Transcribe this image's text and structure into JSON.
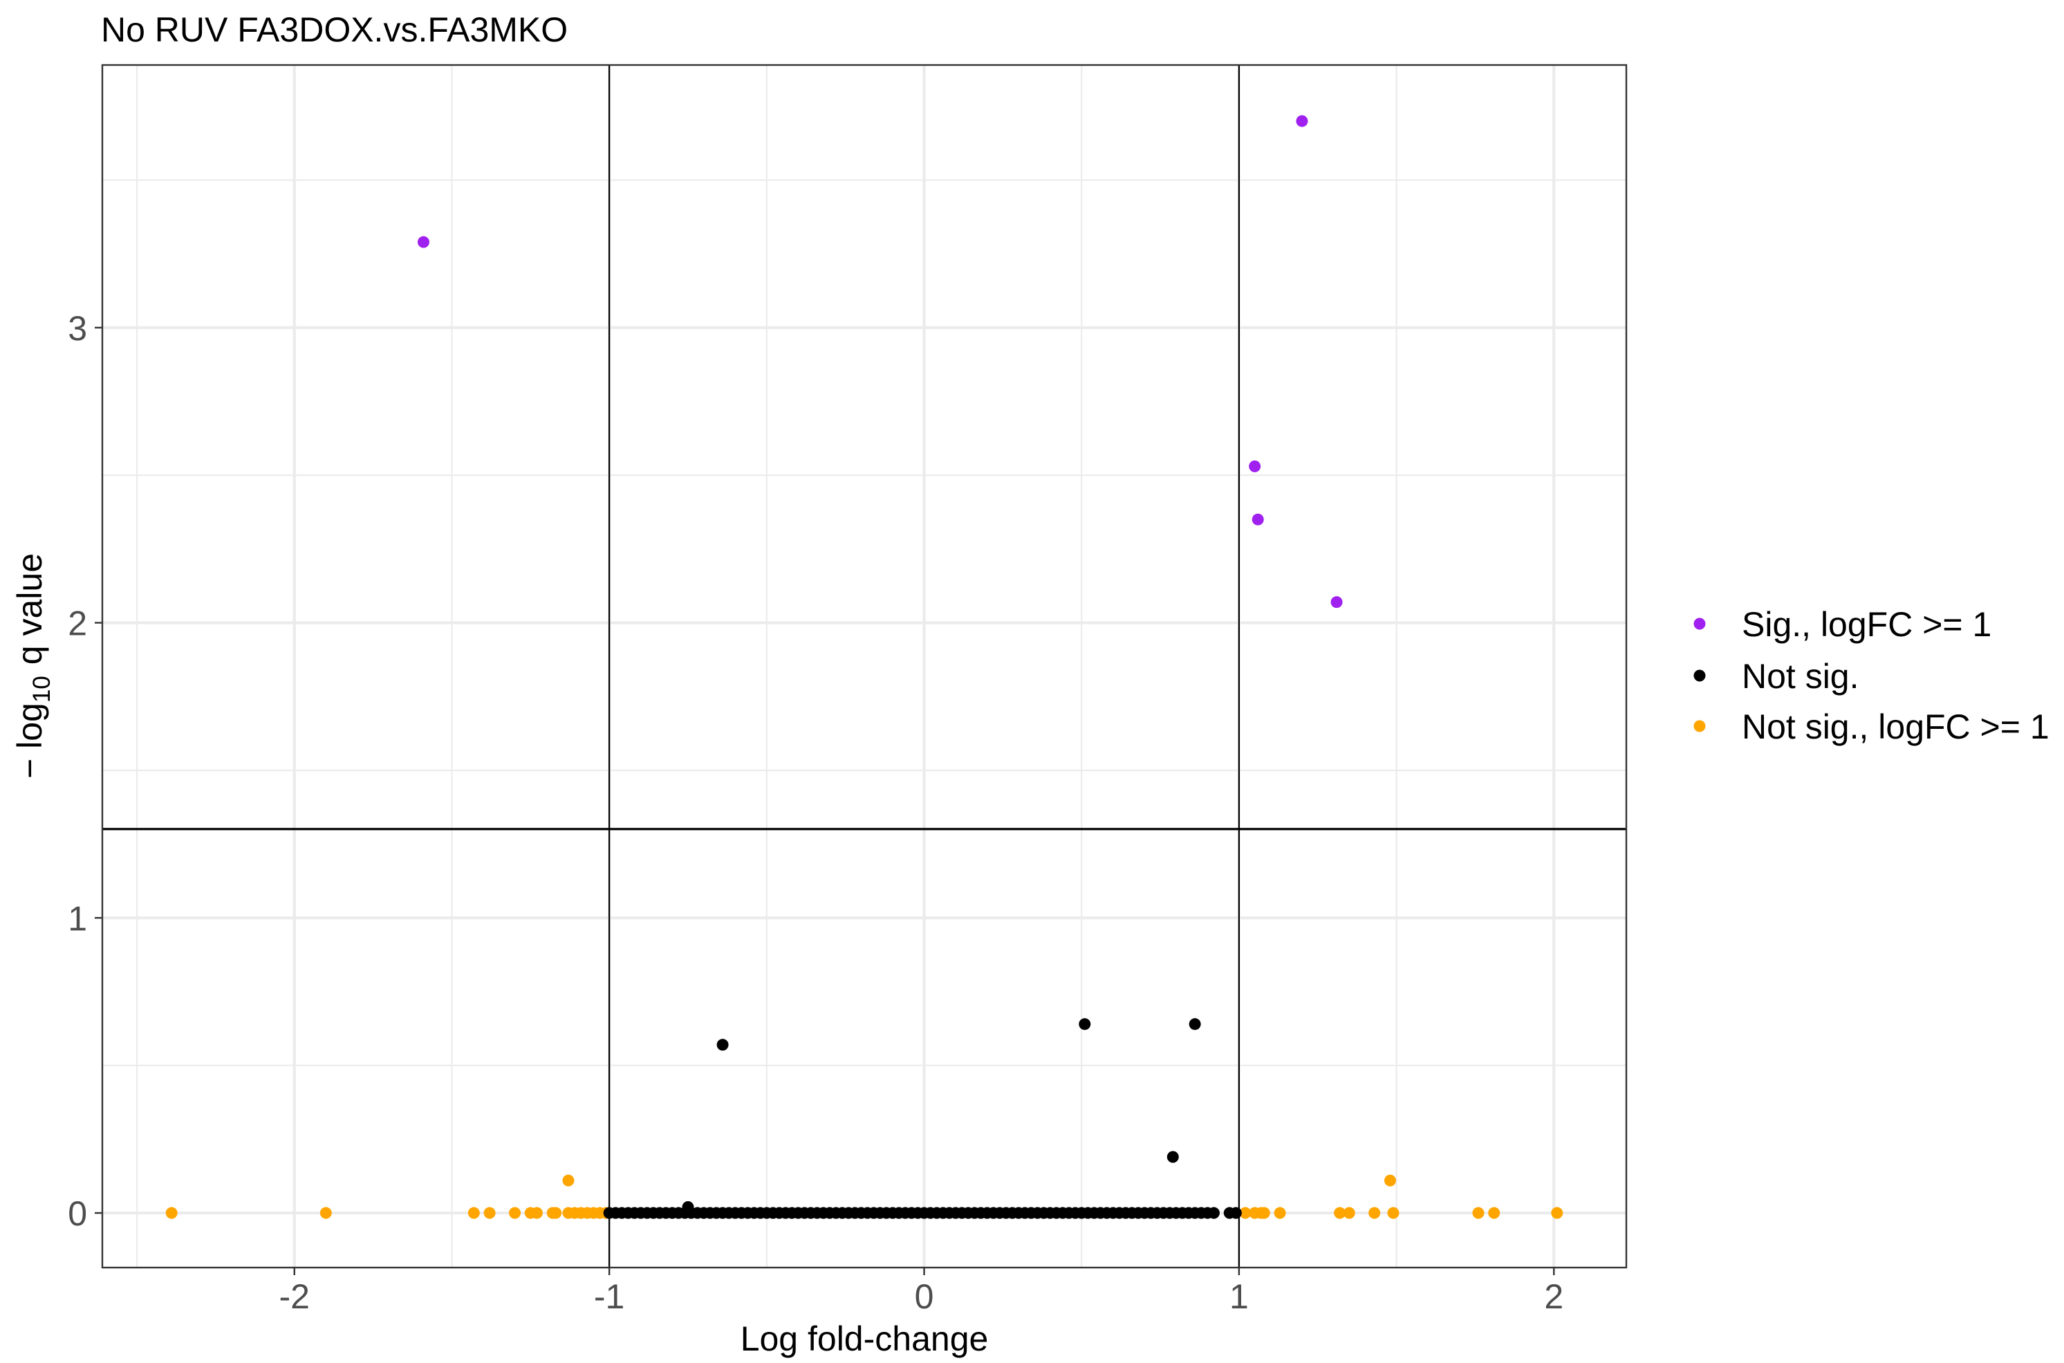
{
  "chart_data": {
    "type": "scatter",
    "title": "No RUV FA3DOX.vs.FA3MKO",
    "xlabel": "Log fold-change",
    "ylabel": {
      "prefix": "− log",
      "subscript": "10",
      "suffix": "q value"
    },
    "xlim": [
      -2.61,
      2.23
    ],
    "ylim": [
      -0.185,
      3.89
    ],
    "x_ticks": [
      -2,
      -1,
      0,
      1,
      2
    ],
    "x_tick_labels": [
      "-2",
      "-1",
      "0",
      "1",
      "2"
    ],
    "y_ticks": [
      0,
      1,
      2,
      3
    ],
    "y_tick_labels": [
      "0",
      "1",
      "2",
      "3"
    ],
    "grid": true,
    "legend_position": "right",
    "reference_lines": {
      "vertical_x": [
        -1,
        1
      ],
      "horizontal_y": [
        1.301
      ]
    },
    "series": [
      {
        "name": "Sig., logFC >= 1",
        "color": "#A020F0",
        "points": [
          [
            -1.59,
            3.29
          ],
          [
            1.2,
            3.7
          ],
          [
            1.05,
            2.53
          ],
          [
            1.06,
            2.35
          ],
          [
            1.31,
            2.07
          ]
        ]
      },
      {
        "name": "Not sig.",
        "color": "#000000",
        "points": [
          [
            -1.0,
            0
          ],
          [
            -0.98,
            0
          ],
          [
            -0.96,
            0
          ],
          [
            -0.94,
            0
          ],
          [
            -0.92,
            0
          ],
          [
            -0.9,
            0
          ],
          [
            -0.88,
            0
          ],
          [
            -0.86,
            0
          ],
          [
            -0.84,
            0
          ],
          [
            -0.82,
            0
          ],
          [
            -0.8,
            0
          ],
          [
            -0.78,
            0
          ],
          [
            -0.76,
            0
          ],
          [
            -0.74,
            0
          ],
          [
            -0.72,
            0
          ],
          [
            -0.7,
            0
          ],
          [
            -0.68,
            0
          ],
          [
            -0.66,
            0
          ],
          [
            -0.64,
            0
          ],
          [
            -0.62,
            0
          ],
          [
            -0.6,
            0
          ],
          [
            -0.58,
            0
          ],
          [
            -0.56,
            0
          ],
          [
            -0.54,
            0
          ],
          [
            -0.52,
            0
          ],
          [
            -0.5,
            0
          ],
          [
            -0.48,
            0
          ],
          [
            -0.46,
            0
          ],
          [
            -0.44,
            0
          ],
          [
            -0.42,
            0
          ],
          [
            -0.4,
            0
          ],
          [
            -0.38,
            0
          ],
          [
            -0.36,
            0
          ],
          [
            -0.34,
            0
          ],
          [
            -0.32,
            0
          ],
          [
            -0.3,
            0
          ],
          [
            -0.28,
            0
          ],
          [
            -0.26,
            0
          ],
          [
            -0.24,
            0
          ],
          [
            -0.22,
            0
          ],
          [
            -0.2,
            0
          ],
          [
            -0.18,
            0
          ],
          [
            -0.16,
            0
          ],
          [
            -0.14,
            0
          ],
          [
            -0.12,
            0
          ],
          [
            -0.1,
            0
          ],
          [
            -0.08,
            0
          ],
          [
            -0.06,
            0
          ],
          [
            -0.04,
            0
          ],
          [
            -0.02,
            0
          ],
          [
            0.0,
            0
          ],
          [
            0.02,
            0
          ],
          [
            0.04,
            0
          ],
          [
            0.06,
            0
          ],
          [
            0.08,
            0
          ],
          [
            0.1,
            0
          ],
          [
            0.12,
            0
          ],
          [
            0.14,
            0
          ],
          [
            0.16,
            0
          ],
          [
            0.18,
            0
          ],
          [
            0.2,
            0
          ],
          [
            0.22,
            0
          ],
          [
            0.24,
            0
          ],
          [
            0.26,
            0
          ],
          [
            0.28,
            0
          ],
          [
            0.3,
            0
          ],
          [
            0.32,
            0
          ],
          [
            0.34,
            0
          ],
          [
            0.36,
            0
          ],
          [
            0.38,
            0
          ],
          [
            0.4,
            0
          ],
          [
            0.42,
            0
          ],
          [
            0.44,
            0
          ],
          [
            0.46,
            0
          ],
          [
            0.48,
            0
          ],
          [
            0.5,
            0
          ],
          [
            0.52,
            0
          ],
          [
            0.54,
            0
          ],
          [
            0.56,
            0
          ],
          [
            0.58,
            0
          ],
          [
            0.6,
            0
          ],
          [
            0.62,
            0
          ],
          [
            0.64,
            0
          ],
          [
            0.66,
            0
          ],
          [
            0.68,
            0
          ],
          [
            0.7,
            0
          ],
          [
            0.72,
            0
          ],
          [
            0.74,
            0
          ],
          [
            0.76,
            0
          ],
          [
            0.78,
            0
          ],
          [
            0.8,
            0
          ],
          [
            0.82,
            0
          ],
          [
            0.84,
            0
          ],
          [
            0.86,
            0
          ],
          [
            0.88,
            0
          ],
          [
            0.9,
            0
          ],
          [
            0.92,
            0
          ],
          [
            0.97,
            0
          ],
          [
            0.99,
            0
          ],
          [
            -0.75,
            0.02
          ],
          [
            -0.64,
            0.57
          ],
          [
            0.51,
            0.64
          ],
          [
            0.86,
            0.64
          ],
          [
            0.79,
            0.19
          ]
        ]
      },
      {
        "name": "Not sig., logFC >= 1",
        "color": "#FFA500",
        "points": [
          [
            -2.39,
            0
          ],
          [
            -1.9,
            0
          ],
          [
            -1.43,
            0
          ],
          [
            -1.38,
            0
          ],
          [
            -1.3,
            0
          ],
          [
            -1.25,
            0
          ],
          [
            -1.23,
            0
          ],
          [
            -1.18,
            0
          ],
          [
            -1.17,
            0
          ],
          [
            -1.13,
            0
          ],
          [
            -1.11,
            0
          ],
          [
            -1.09,
            0
          ],
          [
            -1.07,
            0
          ],
          [
            -1.05,
            0
          ],
          [
            -1.03,
            0
          ],
          [
            -1.01,
            0
          ],
          [
            -1.13,
            0.11
          ],
          [
            1.02,
            0
          ],
          [
            1.05,
            0
          ],
          [
            1.07,
            0
          ],
          [
            1.08,
            0
          ],
          [
            1.13,
            0
          ],
          [
            1.32,
            0
          ],
          [
            1.35,
            0
          ],
          [
            1.43,
            0
          ],
          [
            1.48,
            0.11
          ],
          [
            1.49,
            0
          ],
          [
            1.76,
            0
          ],
          [
            1.81,
            0
          ],
          [
            2.01,
            0
          ]
        ]
      }
    ]
  }
}
